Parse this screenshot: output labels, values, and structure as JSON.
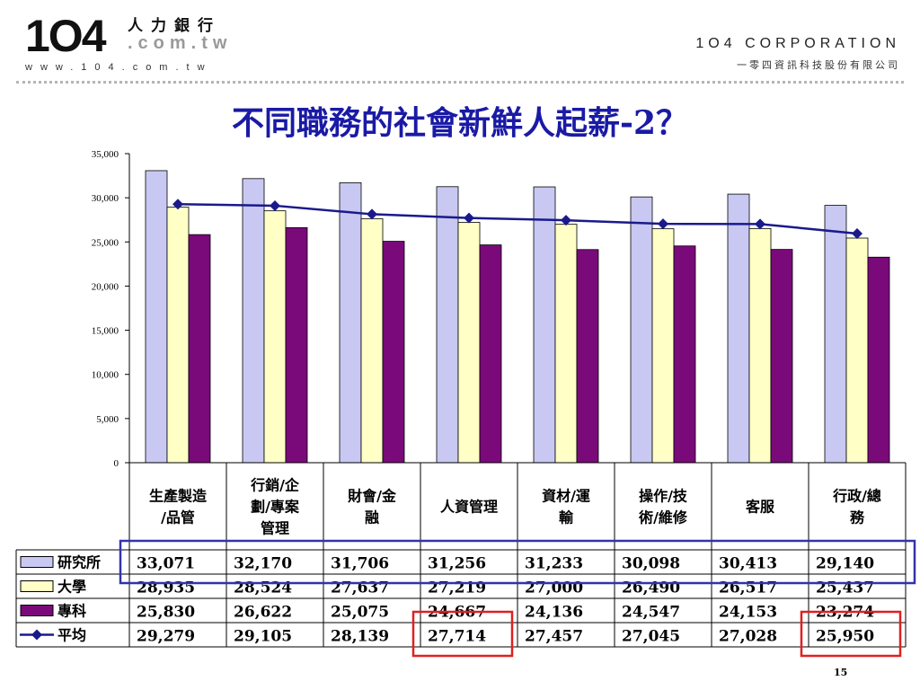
{
  "header": {
    "logo_number": "1O4",
    "logo_chinese": "人力銀行",
    "logo_domain": ".com.tw",
    "logo_website": "www.104.com.tw",
    "corporation_english": "1O4 CORPORATION",
    "corporation_chinese": "一零四資訊科技股份有限公司"
  },
  "page_number": "15",
  "colors": {
    "title": "#1a1aa6",
    "research": "#c8c8f2",
    "university": "#ffffc6",
    "college": "#7a0a7a",
    "average": "#1a1a8c",
    "highlight_blue": "#3333aa",
    "highlight_red": "#e02020"
  },
  "chart_data": {
    "type": "bar",
    "title": "不同職務的社會新鮮人起薪-2？",
    "categories": [
      [
        "生產製造",
        "/品管"
      ],
      [
        "行銷/企",
        "劃/專案",
        "管理"
      ],
      [
        "財會/金",
        "融"
      ],
      [
        "人資管理"
      ],
      [
        "資材/運",
        "輸"
      ],
      [
        "操作/技",
        "術/維修"
      ],
      [
        "客服"
      ],
      [
        "行政/總",
        "務"
      ]
    ],
    "ylim": [
      0,
      35000
    ],
    "yticks": [
      "0",
      "5,000",
      "10,000",
      "15,000",
      "20,000",
      "25,000",
      "30,000",
      "35,000"
    ],
    "grid": false,
    "series": [
      {
        "name": "研究所",
        "kind": "bar",
        "values": [
          33071,
          32170,
          31706,
          31256,
          31233,
          30098,
          30413,
          29140
        ],
        "labels": [
          "33,071",
          "32,170",
          "31,706",
          "31,256",
          "31,233",
          "30,098",
          "30,413",
          "29,140"
        ]
      },
      {
        "name": "大學",
        "kind": "bar",
        "values": [
          28935,
          28524,
          27637,
          27219,
          27000,
          26490,
          26517,
          25437
        ],
        "labels": [
          "28,935",
          "28,524",
          "27,637",
          "27,219",
          "27,000",
          "26,490",
          "26,517",
          "25,437"
        ]
      },
      {
        "name": "專科",
        "kind": "bar",
        "values": [
          25830,
          26622,
          25075,
          24667,
          24136,
          24547,
          24153,
          23274
        ],
        "labels": [
          "25,830",
          "26,622",
          "25,075",
          "24,667",
          "24,136",
          "24,547",
          "24,153",
          "23,274"
        ]
      },
      {
        "name": "平均",
        "kind": "line",
        "values": [
          29279,
          29105,
          28139,
          27714,
          27457,
          27045,
          27028,
          25950
        ],
        "labels": [
          "29,279",
          "29,105",
          "28,139",
          "27,714",
          "27,457",
          "27,045",
          "27,028",
          "25,950"
        ]
      }
    ],
    "highlights": [
      {
        "type": "row",
        "series": 0,
        "color": "blue"
      },
      {
        "type": "cell",
        "series": 3,
        "category": 3,
        "color": "red"
      },
      {
        "type": "cell",
        "series": 3,
        "category": 7,
        "color": "red"
      }
    ]
  }
}
